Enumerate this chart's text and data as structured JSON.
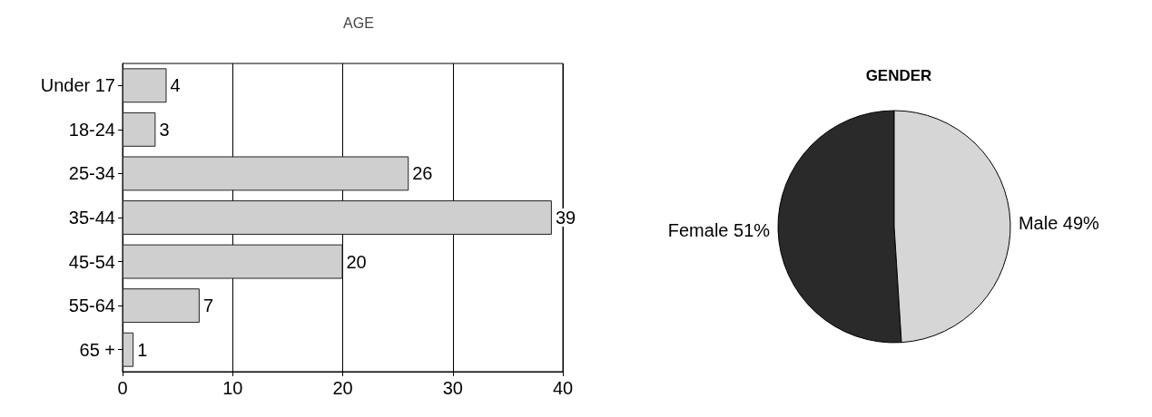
{
  "chart_data": [
    {
      "type": "bar",
      "title": "AGE",
      "orientation": "horizontal",
      "categories": [
        "Under 17",
        "18-24",
        "25-34",
        "35-44",
        "45-54",
        "55-64",
        "65 +"
      ],
      "values": [
        4,
        3,
        26,
        39,
        20,
        7,
        1
      ],
      "color": "#cfcfcf",
      "data_labels": true,
      "xlim": [
        0,
        40
      ],
      "xticks": [
        0,
        10,
        20,
        30,
        40
      ],
      "grid": "x",
      "legend": false
    },
    {
      "type": "pie",
      "title": "GENDER",
      "categories": [
        "Female",
        "Male"
      ],
      "values": [
        51,
        49
      ],
      "colors": [
        "#2a2a2a",
        "#d6d6d6"
      ],
      "value_labels": [
        "51%",
        "49%"
      ],
      "legend": false
    }
  ]
}
